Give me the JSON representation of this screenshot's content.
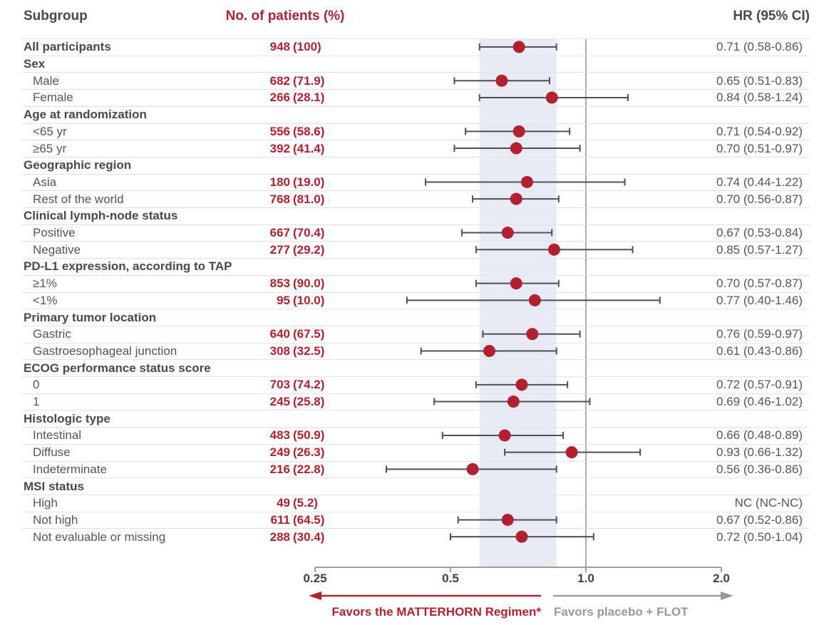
{
  "header": {
    "subgroup": "Subgroup",
    "patients": "No. of patients (%)",
    "hr": "HR (95% CI)"
  },
  "footer": {
    "favors_left": "Favors the MATTERHORN Regimen*",
    "favors_right": "Favors placebo + FLOT"
  },
  "axis": {
    "ticks": [
      {
        "label": "0.25",
        "value": 0.25
      },
      {
        "label": "0.5",
        "value": 0.5
      },
      {
        "label": "1.0",
        "value": 1.0
      },
      {
        "label": "2.0",
        "value": 2.0
      }
    ],
    "ref_value": 1.0
  },
  "colors": {
    "red_text": "#b32030",
    "dot": "#b32030",
    "dark_text": "#48494b",
    "item_text": "#55565a",
    "gray_text": "#98999b",
    "band": "#e8ebf3",
    "separator": "#e4e4e5",
    "axis_line": "#9b9da0",
    "error_bar": "#4f5052",
    "ref_line": "#8e9092",
    "red_arrow": "#b32030",
    "gray_arrow": "#98999b"
  },
  "chart_data": {
    "type": "forest",
    "title": "",
    "x_scale": "log2",
    "xlim": [
      0.25,
      2.0
    ],
    "ref_line": 1.0,
    "shaded_band": [
      0.58,
      0.86
    ],
    "columns": [
      "Subgroup",
      "No. of patients (%)",
      "HR (95% CI)"
    ],
    "rows": [
      {
        "label": "All participants",
        "type": "bold",
        "n": "948",
        "pct": "(100)",
        "hr": 0.71,
        "lo": 0.58,
        "hi": 0.86,
        "hr_text": "0.71 (0.58-0.86)"
      },
      {
        "label": "Sex",
        "type": "header"
      },
      {
        "label": "Male",
        "type": "item",
        "n": "682",
        "pct": "(71.9)",
        "hr": 0.65,
        "lo": 0.51,
        "hi": 0.83,
        "hr_text": "0.65 (0.51-0.83)"
      },
      {
        "label": "Female",
        "type": "item",
        "n": "266",
        "pct": "(28.1)",
        "hr": 0.84,
        "lo": 0.58,
        "hi": 1.24,
        "hr_text": "0.84 (0.58-1.24)"
      },
      {
        "label": "Age at randomization",
        "type": "header"
      },
      {
        "label": "<65 yr",
        "type": "item",
        "n": "556",
        "pct": "(58.6)",
        "hr": 0.71,
        "lo": 0.54,
        "hi": 0.92,
        "hr_text": "0.71 (0.54-0.92)"
      },
      {
        "label": "≥65 yr",
        "type": "item",
        "n": "392",
        "pct": "(41.4)",
        "hr": 0.7,
        "lo": 0.51,
        "hi": 0.97,
        "hr_text": "0.70 (0.51-0.97)"
      },
      {
        "label": "Geographic region",
        "type": "header"
      },
      {
        "label": "Asia",
        "type": "item",
        "n": "180",
        "pct": "(19.0)",
        "hr": 0.74,
        "lo": 0.44,
        "hi": 1.22,
        "hr_text": "0.74 (0.44-1.22)"
      },
      {
        "label": "Rest of the world",
        "type": "item",
        "n": "768",
        "pct": "(81.0)",
        "hr": 0.7,
        "lo": 0.56,
        "hi": 0.87,
        "hr_text": "0.70 (0.56-0.87)"
      },
      {
        "label": "Clinical lymph-node status",
        "type": "header"
      },
      {
        "label": "Positive",
        "type": "item",
        "n": "667",
        "pct": "(70.4)",
        "hr": 0.67,
        "lo": 0.53,
        "hi": 0.84,
        "hr_text": "0.67 (0.53-0.84)"
      },
      {
        "label": "Negative",
        "type": "item",
        "n": "277",
        "pct": "(29.2)",
        "hr": 0.85,
        "lo": 0.57,
        "hi": 1.27,
        "hr_text": "0.85 (0.57-1.27)"
      },
      {
        "label": "PD-L1 expression, according to TAP",
        "type": "header"
      },
      {
        "label": "≥1%",
        "type": "item",
        "n": "853",
        "pct": "(90.0)",
        "hr": 0.7,
        "lo": 0.57,
        "hi": 0.87,
        "hr_text": "0.70 (0.57-0.87)"
      },
      {
        "label": "<1%",
        "type": "item",
        "n": "95",
        "pct": "(10.0)",
        "hr": 0.77,
        "lo": 0.4,
        "hi": 1.46,
        "hr_text": "0.77 (0.40-1.46)"
      },
      {
        "label": "Primary tumor location",
        "type": "header"
      },
      {
        "label": "Gastric",
        "type": "item",
        "n": "640",
        "pct": "(67.5)",
        "hr": 0.76,
        "lo": 0.59,
        "hi": 0.97,
        "hr_text": "0.76 (0.59-0.97)"
      },
      {
        "label": "Gastroesophageal junction",
        "type": "item",
        "n": "308",
        "pct": "(32.5)",
        "hr": 0.61,
        "lo": 0.43,
        "hi": 0.86,
        "hr_text": "0.61 (0.43-0.86)"
      },
      {
        "label": "ECOG performance status score",
        "type": "header"
      },
      {
        "label": "0",
        "type": "item",
        "n": "703",
        "pct": "(74.2)",
        "hr": 0.72,
        "lo": 0.57,
        "hi": 0.91,
        "hr_text": "0.72 (0.57-0.91)"
      },
      {
        "label": "1",
        "type": "item",
        "n": "245",
        "pct": "(25.8)",
        "hr": 0.69,
        "lo": 0.46,
        "hi": 1.02,
        "hr_text": "0.69 (0.46-1.02)"
      },
      {
        "label": "Histologic type",
        "type": "header"
      },
      {
        "label": "Intestinal",
        "type": "item",
        "n": "483",
        "pct": "(50.9)",
        "hr": 0.66,
        "lo": 0.48,
        "hi": 0.89,
        "hr_text": "0.66 (0.48-0.89)"
      },
      {
        "label": "Diffuse",
        "type": "item",
        "n": "249",
        "pct": "(26.3)",
        "hr": 0.93,
        "lo": 0.66,
        "hi": 1.32,
        "hr_text": "0.93 (0.66-1.32)"
      },
      {
        "label": "Indeterminate",
        "type": "item",
        "n": "216",
        "pct": "(22.8)",
        "hr": 0.56,
        "lo": 0.36,
        "hi": 0.86,
        "hr_text": "0.56 (0.36-0.86)"
      },
      {
        "label": "MSI status",
        "type": "header"
      },
      {
        "label": "High",
        "type": "item",
        "n": "49",
        "pct": "(5.2)",
        "hr": null,
        "lo": null,
        "hi": null,
        "hr_text": "NC (NC-NC)"
      },
      {
        "label": "Not high",
        "type": "item",
        "n": "611",
        "pct": "(64.5)",
        "hr": 0.67,
        "lo": 0.52,
        "hi": 0.86,
        "hr_text": "0.67 (0.52-0.86)"
      },
      {
        "label": "Not evaluable or missing",
        "type": "item",
        "n": "288",
        "pct": "(30.4)",
        "hr": 0.72,
        "lo": 0.5,
        "hi": 1.04,
        "hr_text": "0.72 (0.50-1.04)"
      }
    ]
  }
}
